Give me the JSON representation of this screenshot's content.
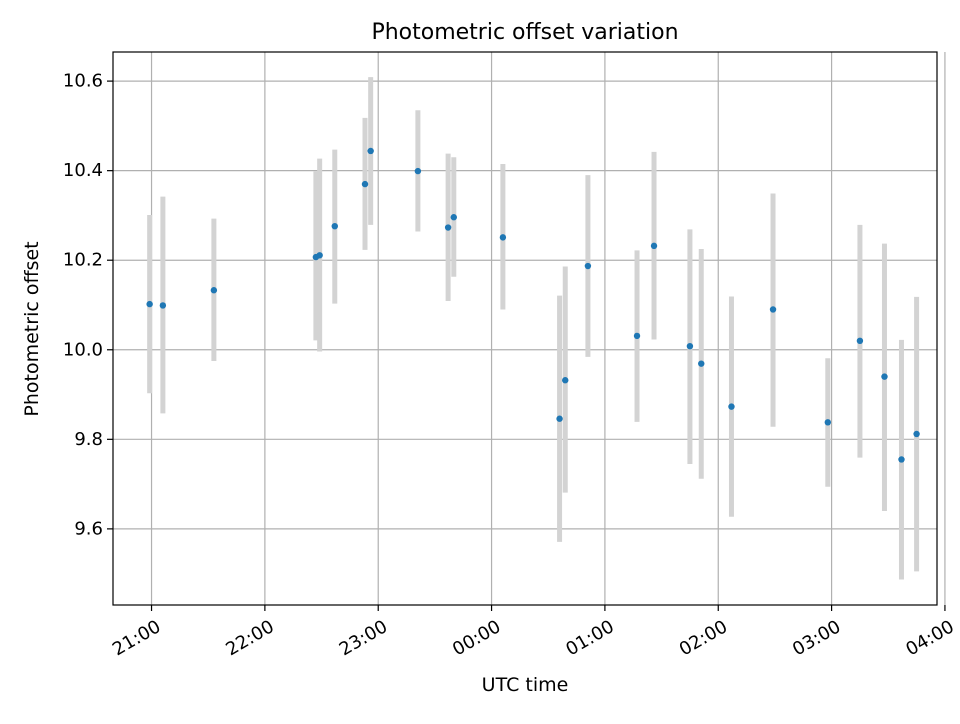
{
  "chart_data": {
    "type": "scatter",
    "title": "Photometric offset variation",
    "xlabel": "UTC time",
    "ylabel": "Photometric offset",
    "x_is_time": true,
    "x_unit": "hours after 21:00 UTC (night spanning midnight)",
    "xlim": [
      -0.34,
      6.93
    ],
    "ylim": [
      9.43,
      10.665
    ],
    "xticks": [
      {
        "value": 0,
        "label": "21:00"
      },
      {
        "value": 1,
        "label": "22:00"
      },
      {
        "value": 2,
        "label": "23:00"
      },
      {
        "value": 3,
        "label": "00:00"
      },
      {
        "value": 4,
        "label": "01:00"
      },
      {
        "value": 5,
        "label": "02:00"
      },
      {
        "value": 6,
        "label": "03:00"
      },
      {
        "value": 7,
        "label": "04:00"
      }
    ],
    "yticks": [
      {
        "value": 9.6,
        "label": "9.6"
      },
      {
        "value": 9.8,
        "label": "9.8"
      },
      {
        "value": 10.0,
        "label": "10.0"
      },
      {
        "value": 10.2,
        "label": "10.2"
      },
      {
        "value": 10.4,
        "label": "10.4"
      },
      {
        "value": 10.6,
        "label": "10.6"
      }
    ],
    "grid": true,
    "colors": {
      "point": "#1f77b4",
      "errorbar": "#d3d3d3",
      "grid": "#b0b0b0"
    },
    "points": [
      {
        "time": "20:59",
        "y": 10.102,
        "ylow": 9.903,
        "yhigh": 10.301
      },
      {
        "time": "21:06",
        "y": 10.099,
        "ylow": 9.858,
        "yhigh": 10.342
      },
      {
        "time": "21:33",
        "y": 10.133,
        "ylow": 9.975,
        "yhigh": 10.293
      },
      {
        "time": "22:27",
        "y": 10.207,
        "ylow": 10.021,
        "yhigh": 10.398
      },
      {
        "time": "22:29",
        "y": 10.211,
        "ylow": 9.996,
        "yhigh": 10.427
      },
      {
        "time": "22:37",
        "y": 10.276,
        "ylow": 10.103,
        "yhigh": 10.447
      },
      {
        "time": "22:53",
        "y": 10.37,
        "ylow": 10.223,
        "yhigh": 10.518
      },
      {
        "time": "22:56",
        "y": 10.444,
        "ylow": 10.279,
        "yhigh": 10.609
      },
      {
        "time": "23:21",
        "y": 10.399,
        "ylow": 10.264,
        "yhigh": 10.535
      },
      {
        "time": "23:37",
        "y": 10.273,
        "ylow": 10.109,
        "yhigh": 10.438
      },
      {
        "time": "23:40",
        "y": 10.296,
        "ylow": 10.163,
        "yhigh": 10.43
      },
      {
        "time": "00:06",
        "y": 10.251,
        "ylow": 10.09,
        "yhigh": 10.415
      },
      {
        "time": "00:36",
        "y": 9.846,
        "ylow": 9.571,
        "yhigh": 10.121
      },
      {
        "time": "00:39",
        "y": 9.932,
        "ylow": 9.681,
        "yhigh": 10.186
      },
      {
        "time": "00:51",
        "y": 10.187,
        "ylow": 9.984,
        "yhigh": 10.39
      },
      {
        "time": "01:17",
        "y": 10.031,
        "ylow": 9.839,
        "yhigh": 10.222
      },
      {
        "time": "01:26",
        "y": 10.232,
        "ylow": 10.023,
        "yhigh": 10.442
      },
      {
        "time": "01:45",
        "y": 10.008,
        "ylow": 9.745,
        "yhigh": 10.269
      },
      {
        "time": "01:51",
        "y": 9.969,
        "ylow": 9.712,
        "yhigh": 10.225
      },
      {
        "time": "02:07",
        "y": 9.873,
        "ylow": 9.627,
        "yhigh": 10.119
      },
      {
        "time": "02:29",
        "y": 10.09,
        "ylow": 9.828,
        "yhigh": 10.349
      },
      {
        "time": "02:58",
        "y": 9.838,
        "ylow": 9.694,
        "yhigh": 9.981
      },
      {
        "time": "03:15",
        "y": 10.02,
        "ylow": 9.759,
        "yhigh": 10.279
      },
      {
        "time": "03:28",
        "y": 9.94,
        "ylow": 9.64,
        "yhigh": 10.237
      },
      {
        "time": "03:37",
        "y": 9.755,
        "ylow": 9.487,
        "yhigh": 10.022
      },
      {
        "time": "03:45",
        "y": 9.812,
        "ylow": 9.505,
        "yhigh": 10.118
      }
    ]
  }
}
